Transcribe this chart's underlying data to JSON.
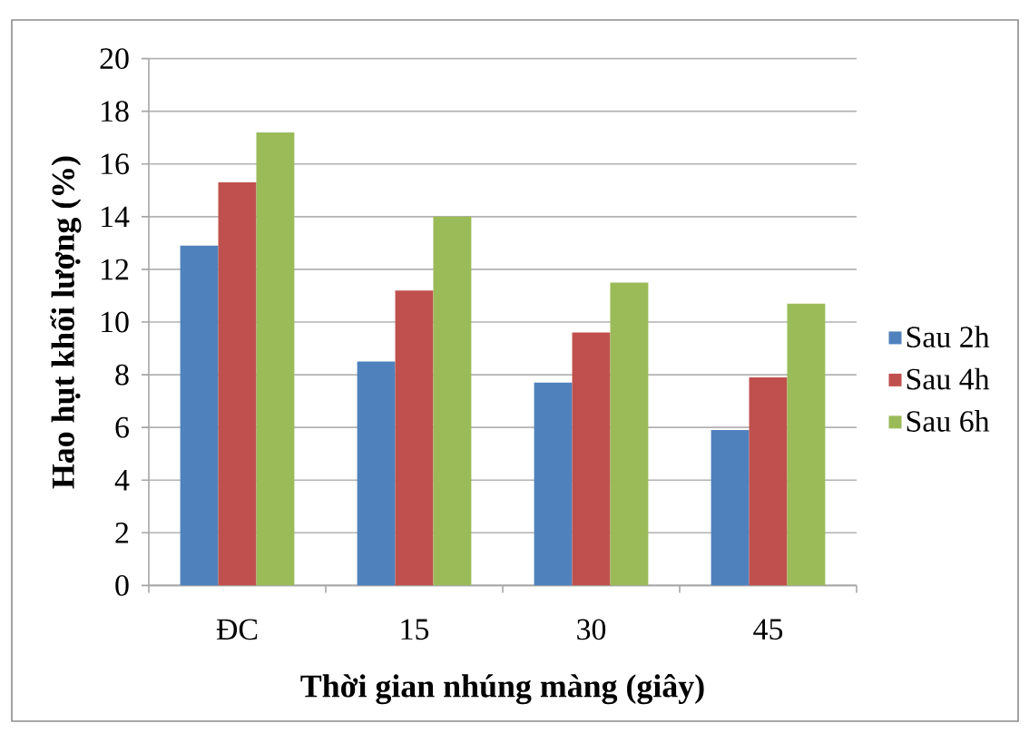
{
  "chart_data": {
    "type": "bar",
    "xlabel": "Thời gian nhúng màng (giây)",
    "ylabel": "Hao hụt khối lượng (%)",
    "categories": [
      "ĐC",
      "15",
      "30",
      "45"
    ],
    "series": [
      {
        "name": "Sau 2h",
        "color": "#4f81bd",
        "values": [
          12.9,
          8.5,
          7.7,
          5.9
        ]
      },
      {
        "name": "Sau 4h",
        "color": "#c0504d",
        "values": [
          15.3,
          11.2,
          9.6,
          7.9
        ]
      },
      {
        "name": "Sau 6h",
        "color": "#9bbb59",
        "values": [
          17.2,
          14.0,
          11.5,
          10.7
        ]
      }
    ],
    "ylim": [
      0,
      20
    ],
    "yticks": [
      0,
      2,
      4,
      6,
      8,
      10,
      12,
      14,
      16,
      18,
      20
    ],
    "grid": "y",
    "legend": "right"
  }
}
